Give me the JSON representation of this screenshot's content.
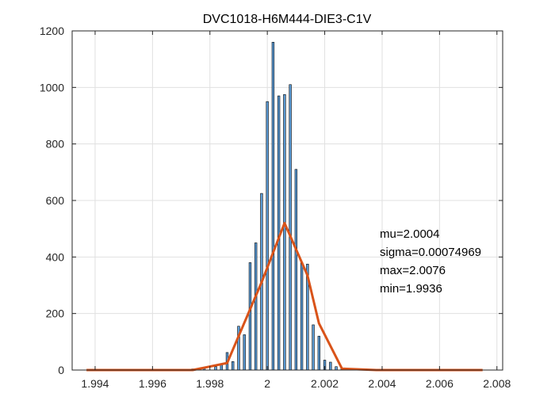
{
  "chart_data": {
    "type": "bar",
    "title": "DVC1018-H6M444-DIE3-C1V",
    "xlim": [
      1.9932,
      2.0082
    ],
    "ylim": [
      0,
      1200
    ],
    "xticks": [
      1.994,
      1.996,
      1.998,
      2,
      2.002,
      2.004,
      2.006,
      2.008
    ],
    "xtick_labels": [
      "1.994",
      "1.996",
      "1.998",
      "2",
      "2.002",
      "2.004",
      "2.006",
      "2.008"
    ],
    "yticks": [
      0,
      200,
      400,
      600,
      800,
      1000,
      1200
    ],
    "ytick_labels": [
      "0",
      "200",
      "400",
      "600",
      "800",
      "1000",
      "1200"
    ],
    "grid": true,
    "bar_color": "#5b9bd5",
    "line_color": "#d95319",
    "histogram": {
      "bin_width": 0.0001,
      "bins": [
        {
          "x": 1.997,
          "count": 3
        },
        {
          "x": 1.9974,
          "count": 4
        },
        {
          "x": 1.9978,
          "count": 8
        },
        {
          "x": 1.9982,
          "count": 12
        },
        {
          "x": 1.9984,
          "count": 18
        },
        {
          "x": 1.9986,
          "count": 62
        },
        {
          "x": 1.9988,
          "count": 30
        },
        {
          "x": 1.999,
          "count": 155
        },
        {
          "x": 1.9992,
          "count": 125
        },
        {
          "x": 1.9994,
          "count": 380
        },
        {
          "x": 1.9996,
          "count": 450
        },
        {
          "x": 1.9998,
          "count": 625
        },
        {
          "x": 2.0,
          "count": 950
        },
        {
          "x": 2.0002,
          "count": 1160
        },
        {
          "x": 2.0004,
          "count": 970
        },
        {
          "x": 2.0006,
          "count": 975
        },
        {
          "x": 2.0008,
          "count": 1010
        },
        {
          "x": 2.001,
          "count": 710
        },
        {
          "x": 2.0012,
          "count": 380
        },
        {
          "x": 2.0014,
          "count": 375
        },
        {
          "x": 2.0016,
          "count": 160
        },
        {
          "x": 2.0018,
          "count": 120
        },
        {
          "x": 2.002,
          "count": 35
        },
        {
          "x": 2.0022,
          "count": 28
        },
        {
          "x": 2.0024,
          "count": 12
        },
        {
          "x": 2.0026,
          "count": 5
        }
      ]
    },
    "fit_line": {
      "x": [
        1.9937,
        1.9962,
        1.9974,
        1.9986,
        1.9998,
        2.0006,
        2.0014,
        2.0018,
        2.0026,
        2.0038,
        2.005,
        2.0062,
        2.0075
      ],
      "y": [
        0,
        0,
        0,
        25,
        310,
        520,
        335,
        165,
        5,
        0,
        0,
        0,
        0
      ]
    },
    "annotations": [
      "mu=2.0004",
      "sigma=0.00074969",
      "max=2.0076",
      "min=1.9936"
    ]
  }
}
